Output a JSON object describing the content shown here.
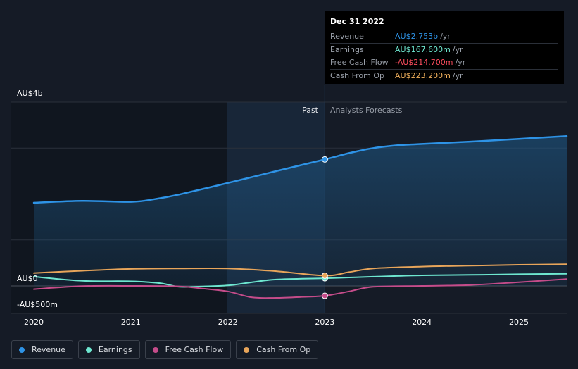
{
  "tooltip": {
    "date": "Dec 31 2022",
    "rows": [
      {
        "label": "Revenue",
        "value": "AU$2.753b",
        "unit": "/yr",
        "color": "#2e93e6"
      },
      {
        "label": "Earnings",
        "value": "AU$167.600m",
        "unit": "/yr",
        "color": "#6ee7d0"
      },
      {
        "label": "Free Cash Flow",
        "value": "-AU$214.700m",
        "unit": "/yr",
        "color": "#ff4d5e"
      },
      {
        "label": "Cash From Op",
        "value": "AU$223.200m",
        "unit": "/yr",
        "color": "#f2b15c"
      }
    ]
  },
  "legend": [
    {
      "label": "Revenue",
      "color": "#2e93e6"
    },
    {
      "label": "Earnings",
      "color": "#6ee7d0"
    },
    {
      "label": "Free Cash Flow",
      "color": "#c54c8a"
    },
    {
      "label": "Cash From Op",
      "color": "#e8a55a"
    }
  ],
  "chart_data": {
    "type": "line",
    "title": "",
    "xlabel": "",
    "ylabel": "",
    "y_tick_labels": [
      "AU$4b",
      "AU$0",
      "-AU$500m"
    ],
    "x_tick_labels": [
      "2020",
      "2021",
      "2022",
      "2023",
      "2024",
      "2025"
    ],
    "ylim": [
      -500,
      4000
    ],
    "xlim": [
      2019.8,
      2025.5
    ],
    "past_label": "Past",
    "forecast_label": "Analysts Forecasts",
    "divider_x": 2023.0,
    "series": [
      {
        "name": "Revenue",
        "color": "#2e93e6",
        "x": [
          2020.0,
          2020.5,
          2021.0,
          2021.25,
          2021.5,
          2022.0,
          2022.5,
          2023.0,
          2023.25,
          2023.5,
          2023.75,
          2024.0,
          2024.5,
          2025.0,
          2025.5
        ],
        "values": [
          1810,
          1850,
          1830,
          1890,
          1990,
          2240,
          2500,
          2753,
          2890,
          3000,
          3060,
          3090,
          3140,
          3200,
          3260
        ]
      },
      {
        "name": "Earnings",
        "color": "#6ee7d0",
        "x": [
          2020.0,
          2020.5,
          2021.0,
          2021.3,
          2021.5,
          2021.75,
          2022.0,
          2022.25,
          2022.5,
          2023.0,
          2023.5,
          2024.0,
          2024.5,
          2025.0,
          2025.5
        ],
        "values": [
          200,
          110,
          100,
          60,
          -20,
          -10,
          10,
          80,
          140,
          167.6,
          200,
          230,
          240,
          255,
          265
        ]
      },
      {
        "name": "Free Cash Flow",
        "color": "#c54c8a",
        "x": [
          2020.0,
          2020.5,
          2021.0,
          2021.5,
          2021.75,
          2022.0,
          2022.25,
          2022.5,
          2022.75,
          2023.0,
          2023.25,
          2023.5,
          2024.0,
          2024.5,
          2025.0,
          2025.5
        ],
        "values": [
          -70,
          -5,
          0,
          -10,
          -60,
          -120,
          -250,
          -260,
          -240,
          -214.7,
          -120,
          -20,
          0,
          20,
          80,
          150
        ]
      },
      {
        "name": "Cash From Op",
        "color": "#e8a55a",
        "x": [
          2020.0,
          2020.5,
          2021.0,
          2021.5,
          2022.0,
          2022.5,
          2023.0,
          2023.25,
          2023.5,
          2024.0,
          2024.5,
          2025.0,
          2025.5
        ],
        "values": [
          280,
          330,
          370,
          380,
          380,
          320,
          223.2,
          300,
          380,
          420,
          440,
          460,
          470
        ]
      }
    ]
  }
}
